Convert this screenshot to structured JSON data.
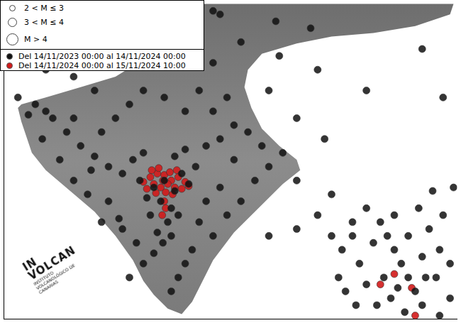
{
  "chart_data": {
    "type": "scatter",
    "xlim": [
      0,
      650
    ],
    "ylim": [
      0,
      455
    ],
    "tick_labels": false,
    "grid": false,
    "magnitude_legend": [
      "2 < M ≤ 3",
      "3 < M ≤ 4",
      "M > 4"
    ],
    "logo": {
      "name": [
        "IN",
        "VOLCAN"
      ],
      "text": "INSTITUTO VOLCANOLÓGICO DE CANARIAS"
    },
    "series": [
      {
        "name": "Del 14/11/2023 00:00 al 14/11/2024 00:00",
        "color": "#111111",
        "marker": "circle",
        "values": [
          [
            230,
            200
          ],
          [
            215,
            190
          ],
          [
            245,
            185
          ],
          [
            205,
            175
          ],
          [
            255,
            210
          ],
          [
            225,
            170
          ],
          [
            240,
            160
          ],
          [
            210,
            150
          ],
          [
            235,
            140
          ],
          [
            220,
            125
          ],
          [
            228,
            110
          ],
          [
            215,
            95
          ],
          [
            240,
            120
          ],
          [
            250,
            150
          ],
          [
            195,
            200
          ],
          [
            265,
            195
          ],
          [
            275,
            220
          ],
          [
            185,
            230
          ],
          [
            200,
            240
          ],
          [
            245,
            235
          ],
          [
            260,
            245
          ],
          [
            290,
            250
          ],
          [
            310,
            260
          ],
          [
            170,
            210
          ],
          [
            150,
            220
          ],
          [
            130,
            235
          ],
          [
            110,
            250
          ],
          [
            90,
            270
          ],
          [
            70,
            290
          ],
          [
            60,
            300
          ],
          [
            45,
            310
          ],
          [
            100,
            290
          ],
          [
            140,
            270
          ],
          [
            160,
            290
          ],
          [
            180,
            310
          ],
          [
            200,
            330
          ],
          [
            230,
            320
          ],
          [
            260,
            300
          ],
          [
            280,
            330
          ],
          [
            300,
            300
          ],
          [
            320,
            320
          ],
          [
            330,
            280
          ],
          [
            350,
            270
          ],
          [
            370,
            250
          ],
          [
            380,
            220
          ],
          [
            360,
            200
          ],
          [
            340,
            170
          ],
          [
            310,
            190
          ],
          [
            290,
            170
          ],
          [
            280,
            140
          ],
          [
            300,
            120
          ],
          [
            270,
            100
          ],
          [
            260,
            80
          ],
          [
            250,
            60
          ],
          [
            240,
            40
          ],
          [
            320,
            150
          ],
          [
            330,
            230
          ],
          [
            400,
            240
          ],
          [
            420,
            200
          ],
          [
            150,
            170
          ],
          [
            120,
            180
          ],
          [
            100,
            200
          ],
          [
            80,
            230
          ],
          [
            140,
            140
          ],
          [
            170,
            130
          ],
          [
            190,
            110
          ],
          [
            200,
            80
          ],
          [
            180,
            60
          ],
          [
            165,
            145
          ],
          [
            125,
            215
          ],
          [
            55,
            260
          ],
          [
            35,
            295
          ],
          [
            20,
            320
          ],
          [
            300,
            370
          ],
          [
            340,
            400
          ],
          [
            380,
            330
          ],
          [
            420,
            290
          ],
          [
            460,
            260
          ],
          [
            470,
            180
          ],
          [
            440,
            420
          ],
          [
            390,
            430
          ],
          [
            310,
            440
          ],
          [
            130,
            330
          ],
          [
            100,
            350
          ],
          [
            60,
            360
          ],
          [
            450,
            360
          ],
          [
            520,
            330
          ],
          [
            600,
            390
          ],
          [
            630,
            320
          ],
          [
            500,
            120
          ],
          [
            480,
            60
          ],
          [
            420,
            130
          ],
          [
            380,
            120
          ],
          [
            395,
            380
          ],
          [
            300,
            445
          ],
          [
            560,
            100
          ],
          [
            570,
            80
          ],
          [
            545,
            60
          ],
          [
            580,
            120
          ],
          [
            600,
            90
          ],
          [
            620,
            60
          ],
          [
            530,
            110
          ],
          [
            510,
            80
          ],
          [
            590,
            40
          ],
          [
            555,
            30
          ],
          [
            575,
            10
          ],
          [
            610,
            130
          ],
          [
            630,
            150
          ],
          [
            500,
            140
          ],
          [
            520,
            50
          ],
          [
            540,
            140
          ],
          [
            595,
            160
          ],
          [
            625,
            100
          ],
          [
            640,
            30
          ],
          [
            485,
            100
          ],
          [
            560,
            150
          ],
          [
            600,
            20
          ],
          [
            535,
            20
          ],
          [
            470,
            120
          ],
          [
            450,
            150
          ],
          [
            645,
            190
          ],
          [
            615,
            185
          ],
          [
            505,
            20
          ],
          [
            580,
            60
          ],
          [
            550,
            120
          ],
          [
            625,
            5
          ],
          [
            490,
            40
          ],
          [
            565,
            45
          ],
          [
            605,
            60
          ],
          [
            520,
            160
          ],
          [
            640,
            80
          ]
        ]
      },
      {
        "name": "Del 14/11/2024 00:00 al 15/11/2024 10:00",
        "color": "#d11a1a",
        "marker": "circle",
        "values": [
          [
            210,
            205
          ],
          [
            220,
            210
          ],
          [
            230,
            208
          ],
          [
            240,
            200
          ],
          [
            250,
            205
          ],
          [
            260,
            198
          ],
          [
            215,
            195
          ],
          [
            225,
            190
          ],
          [
            235,
            195
          ],
          [
            245,
            190
          ],
          [
            255,
            188
          ],
          [
            205,
            188
          ],
          [
            218,
            182
          ],
          [
            232,
            183
          ],
          [
            242,
            180
          ],
          [
            265,
            192
          ],
          [
            228,
            200
          ],
          [
            238,
            212
          ],
          [
            222,
            218
          ],
          [
            212,
            215
          ],
          [
            248,
            215
          ],
          [
            230,
            170
          ],
          [
            232,
            160
          ],
          [
            227,
            150
          ],
          [
            200,
            198
          ],
          [
            560,
            65
          ],
          [
            540,
            50
          ],
          [
            585,
            45
          ],
          [
            590,
            5
          ]
        ]
      }
    ]
  }
}
